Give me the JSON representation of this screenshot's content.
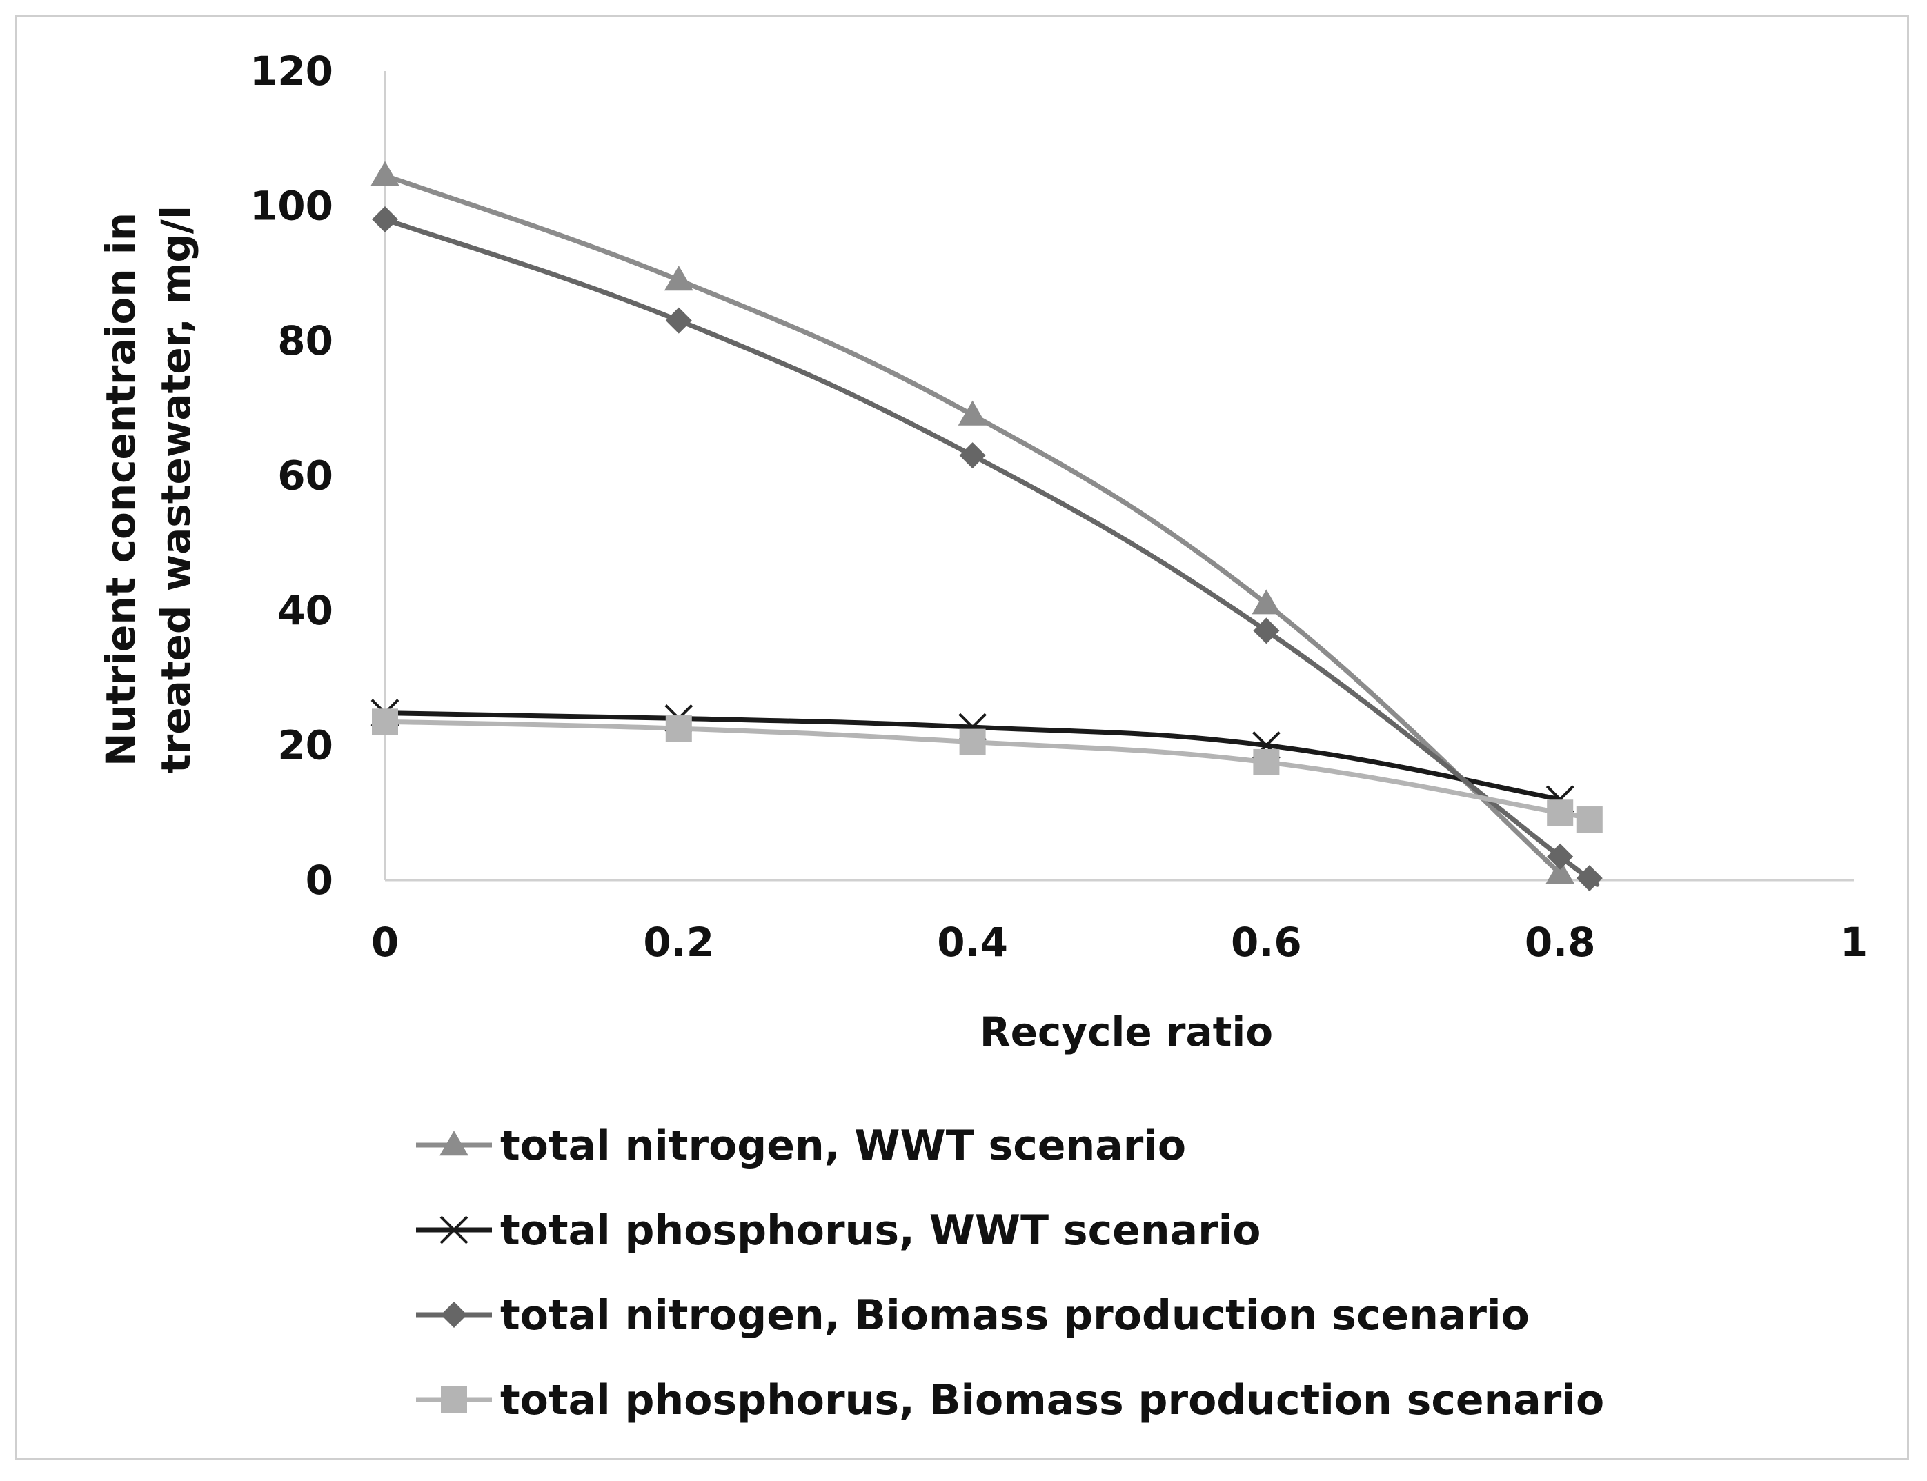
{
  "chart_data": {
    "type": "line",
    "title": "",
    "xlabel": "Recycle ratio",
    "ylabel_lines": [
      "Nutrient concentraion in",
      "treated wastewater, mg/l"
    ],
    "xlim": [
      0,
      1
    ],
    "ylim": [
      0,
      120
    ],
    "x_ticks": [
      "0",
      "0.2",
      "0.4",
      "0.6",
      "0.8",
      "1"
    ],
    "y_ticks": [
      "0",
      "20",
      "40",
      "60",
      "80",
      "100",
      "120"
    ],
    "grid": false,
    "legend_position": "bottom",
    "series": [
      {
        "name": "total nitrogen, WWT scenario",
        "marker": "triangle",
        "color": "#8c8c8c",
        "x": [
          0,
          0.2,
          0.4,
          0.6,
          0.8
        ],
        "y": [
          104.5,
          89,
          69,
          41,
          1
        ]
      },
      {
        "name": "total phosphorus, WWT scenario",
        "marker": "x",
        "color": "#1a1a1a",
        "x": [
          0,
          0.2,
          0.4,
          0.6,
          0.8
        ],
        "y": [
          24.8,
          24,
          22.7,
          20,
          12
        ]
      },
      {
        "name": "total nitrogen, Biomass production scenario",
        "marker": "diamond",
        "color": "#666666",
        "x": [
          0,
          0.2,
          0.4,
          0.6,
          0.8,
          0.82
        ],
        "y": [
          98,
          83,
          63,
          37,
          3.5,
          0.3
        ]
      },
      {
        "name": "total phosphorus, Biomass production scenario",
        "marker": "square",
        "color": "#b4b4b4",
        "x": [
          0,
          0.2,
          0.4,
          0.6,
          0.8,
          0.82
        ],
        "y": [
          23.5,
          22.5,
          20.5,
          17.5,
          10,
          9
        ]
      }
    ]
  }
}
